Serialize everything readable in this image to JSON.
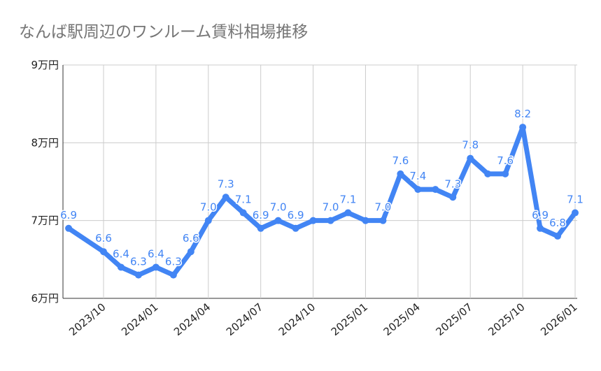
{
  "chart_data": {
    "type": "line",
    "title": "なんば駅周辺のワンルーム賃料相場推移",
    "xlabel": "",
    "ylabel": "",
    "ylim": [
      6,
      9
    ],
    "y_ticks": [
      6,
      7,
      8,
      9
    ],
    "y_tick_labels": [
      "6万円",
      "7万円",
      "8万円",
      "9万円"
    ],
    "x_tick_labels": [
      "2023/10",
      "2024/01",
      "2024/04",
      "2024/07",
      "2024/10",
      "2025/01",
      "2025/04",
      "2025/07",
      "2025/10",
      "2026/01"
    ],
    "grid": true,
    "color": "#4285f4",
    "x": [
      "2023/08",
      "2023/10",
      "2023/11",
      "2023/12",
      "2024/01",
      "2024/02",
      "2024/03",
      "2024/04",
      "2024/05",
      "2024/06",
      "2024/07",
      "2024/08",
      "2024/09",
      "2024/10",
      "2024/11",
      "2024/12",
      "2025/01",
      "2025/02",
      "2025/03",
      "2025/04",
      "2025/05",
      "2025/06",
      "2025/07",
      "2025/08",
      "2025/09",
      "2025/10",
      "2025/11",
      "2025/12",
      "2026/01"
    ],
    "values": [
      6.9,
      6.6,
      6.4,
      6.3,
      6.4,
      6.3,
      6.6,
      7.0,
      7.3,
      7.1,
      6.9,
      7.0,
      6.9,
      7.0,
      7.0,
      7.1,
      7.0,
      7.0,
      7.6,
      7.4,
      7.4,
      7.3,
      7.8,
      7.6,
      7.6,
      8.2,
      6.9,
      6.8,
      7.1
    ],
    "data_labels": [
      "6.9",
      "6.6",
      "6.4",
      "6.3",
      "6.4",
      "6.3",
      "6.6",
      "7.0",
      "7.3",
      "7.1",
      "6.9",
      "7.0",
      "6.9",
      "",
      "7.0",
      "7.1",
      "",
      "7.0",
      "7.6",
      "7.4",
      "",
      "7.3",
      "7.8",
      "",
      "7.6",
      "8.2",
      "6.9",
      "6.8",
      "7.1"
    ]
  }
}
